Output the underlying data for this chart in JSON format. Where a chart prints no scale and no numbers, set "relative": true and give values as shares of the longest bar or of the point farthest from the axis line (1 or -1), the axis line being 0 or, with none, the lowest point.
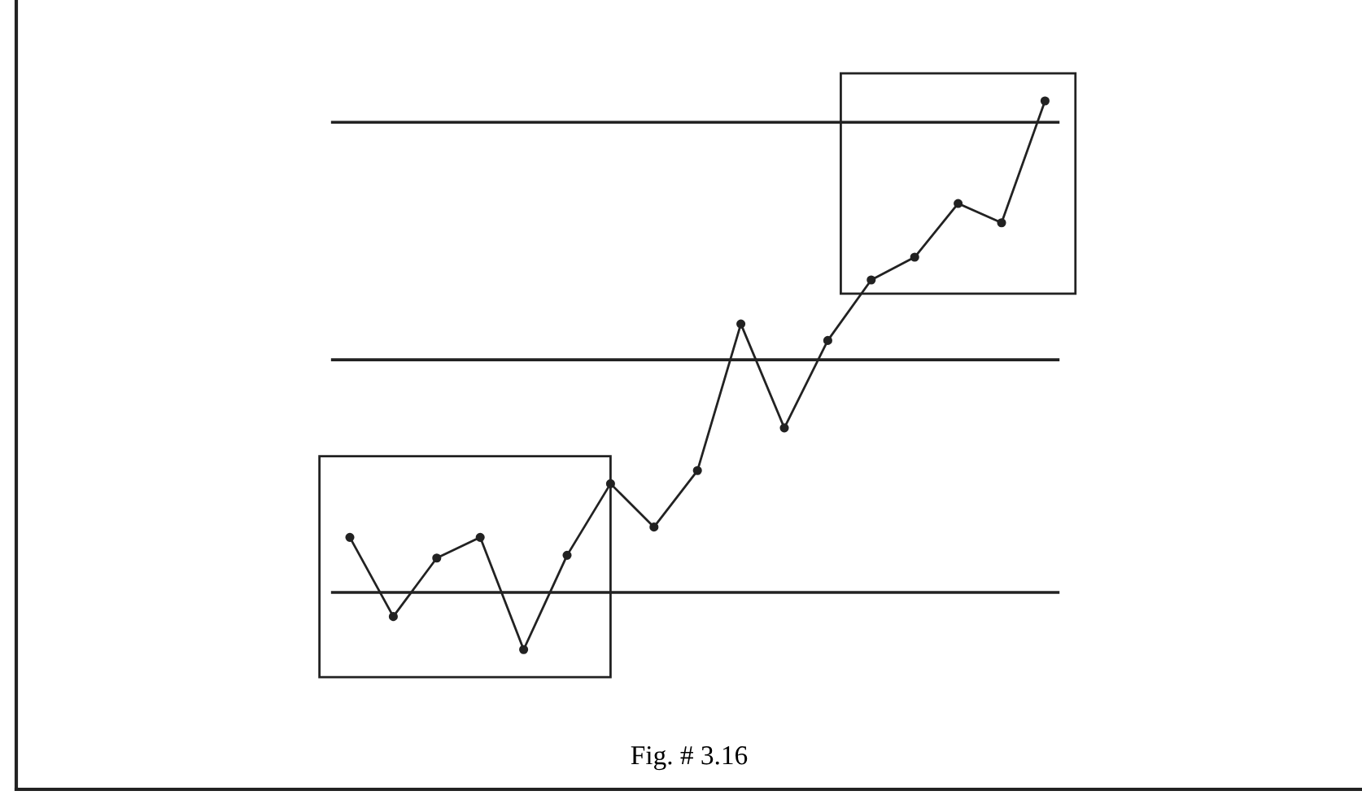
{
  "chart_data": {
    "type": "line",
    "relative": true,
    "categories": [
      null,
      null,
      null,
      null,
      null,
      null,
      null,
      null,
      null,
      null,
      null,
      null,
      null,
      null,
      null,
      null,
      null
    ],
    "series": [
      {
        "color": "#222222",
        "values": [
          0.366,
          0.251,
          0.336,
          0.366,
          0.203,
          0.34,
          0.444,
          0.381,
          0.463,
          0.676,
          0.525,
          0.652,
          0.74,
          0.773,
          0.851,
          0.823,
          1
        ]
      }
    ],
    "marker": "circle",
    "line_style": "solid",
    "grid": false,
    "ref_lines": [
      {
        "axis": "y",
        "value": 0.969,
        "color": "#222222"
      },
      {
        "axis": "y",
        "value": 0.624,
        "color": "#222222"
      },
      {
        "axis": "y",
        "value": 0.286,
        "color": "#222222"
      }
    ],
    "annotations": [
      "Fig. # 3.16"
    ]
  }
}
